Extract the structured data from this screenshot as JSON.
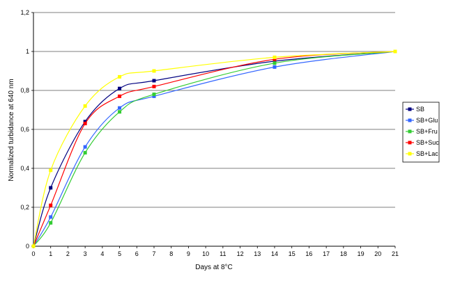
{
  "chart_data": {
    "type": "line",
    "xlabel": "Days at 8°C",
    "ylabel": "Normalized turbidance at 640 nm",
    "xlim": [
      0,
      21
    ],
    "ylim": [
      0,
      1.2
    ],
    "x_ticks": [
      "0",
      "1",
      "2",
      "3",
      "4",
      "5",
      "6",
      "7",
      "8",
      "9",
      "10",
      "11",
      "12",
      "13",
      "14",
      "15",
      "16",
      "17",
      "18",
      "19",
      "20",
      "21"
    ],
    "y_ticks": [
      "0",
      "0,2",
      "0,4",
      "0,6",
      "0,8",
      "1",
      "1,2"
    ],
    "grid": "horizontal",
    "legend_position": "right",
    "series": [
      {
        "name": "SB",
        "color": "#000080",
        "x": [
          0,
          1,
          3,
          5,
          7,
          14,
          21
        ],
        "y": [
          0,
          0.3,
          0.64,
          0.81,
          0.85,
          0.95,
          1.0
        ]
      },
      {
        "name": "SB+Glu",
        "color": "#3366ff",
        "x": [
          0,
          1,
          3,
          5,
          7,
          14,
          21
        ],
        "y": [
          0,
          0.15,
          0.51,
          0.71,
          0.77,
          0.92,
          1.0
        ]
      },
      {
        "name": "SB+Fru",
        "color": "#33cc33",
        "x": [
          0,
          1,
          3,
          5,
          7,
          14,
          21
        ],
        "y": [
          0,
          0.12,
          0.48,
          0.69,
          0.78,
          0.94,
          1.0
        ]
      },
      {
        "name": "SB+Suc",
        "color": "#ff0000",
        "x": [
          0,
          1,
          3,
          5,
          7,
          14,
          21
        ],
        "y": [
          0,
          0.21,
          0.63,
          0.77,
          0.82,
          0.96,
          1.0
        ]
      },
      {
        "name": "SB+Lac",
        "color": "#ffff00",
        "x": [
          0,
          1,
          3,
          5,
          7,
          14,
          21
        ],
        "y": [
          0,
          0.39,
          0.72,
          0.87,
          0.9,
          0.97,
          1.0
        ]
      }
    ]
  }
}
